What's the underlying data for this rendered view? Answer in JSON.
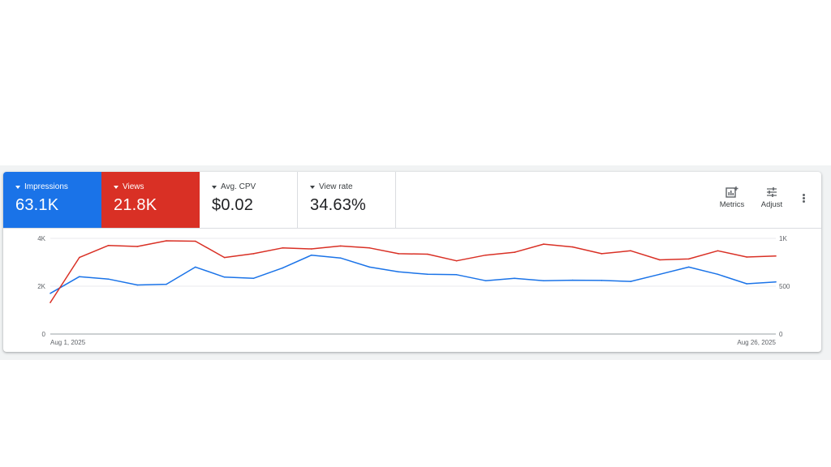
{
  "scorecards": [
    {
      "label": "Impressions",
      "value": "63.1K",
      "color": "#1a73e8"
    },
    {
      "label": "Views",
      "value": "21.8K",
      "color": "#d93025"
    },
    {
      "label": "Avg. CPV",
      "value": "$0.02"
    },
    {
      "label": "View rate",
      "value": "34.63%"
    }
  ],
  "toolbar": {
    "metrics_label": "Metrics",
    "adjust_label": "Adjust",
    "metrics_icon": "chart-plus-icon",
    "adjust_icon": "tune-icon",
    "more_icon": "more-vert-icon"
  },
  "chart_data": {
    "type": "line",
    "x_start_label": "Aug 1, 2025",
    "x_end_label": "Aug 26, 2025",
    "left_ticks": [
      "4K",
      "2K",
      "0"
    ],
    "right_ticks": [
      "1K",
      "500",
      "0"
    ],
    "grid": true,
    "series": [
      {
        "color": "#1a73e8",
        "axis": "left",
        "ylim": [
          0,
          4000
        ],
        "values": [
          1700,
          2400,
          2300,
          2050,
          2080,
          2800,
          2380,
          2330,
          2760,
          3300,
          3180,
          2800,
          2600,
          2500,
          2480,
          2230,
          2330,
          2230,
          2250,
          2240,
          2200,
          2500,
          2800,
          2500,
          2100,
          2180
        ]
      },
      {
        "color": "#d93025",
        "axis": "right",
        "ylim": [
          0,
          1000
        ],
        "values": [
          330,
          800,
          925,
          915,
          975,
          970,
          800,
          840,
          900,
          890,
          920,
          900,
          840,
          835,
          765,
          825,
          855,
          940,
          910,
          840,
          870,
          775,
          785,
          870,
          805,
          815
        ]
      }
    ]
  }
}
